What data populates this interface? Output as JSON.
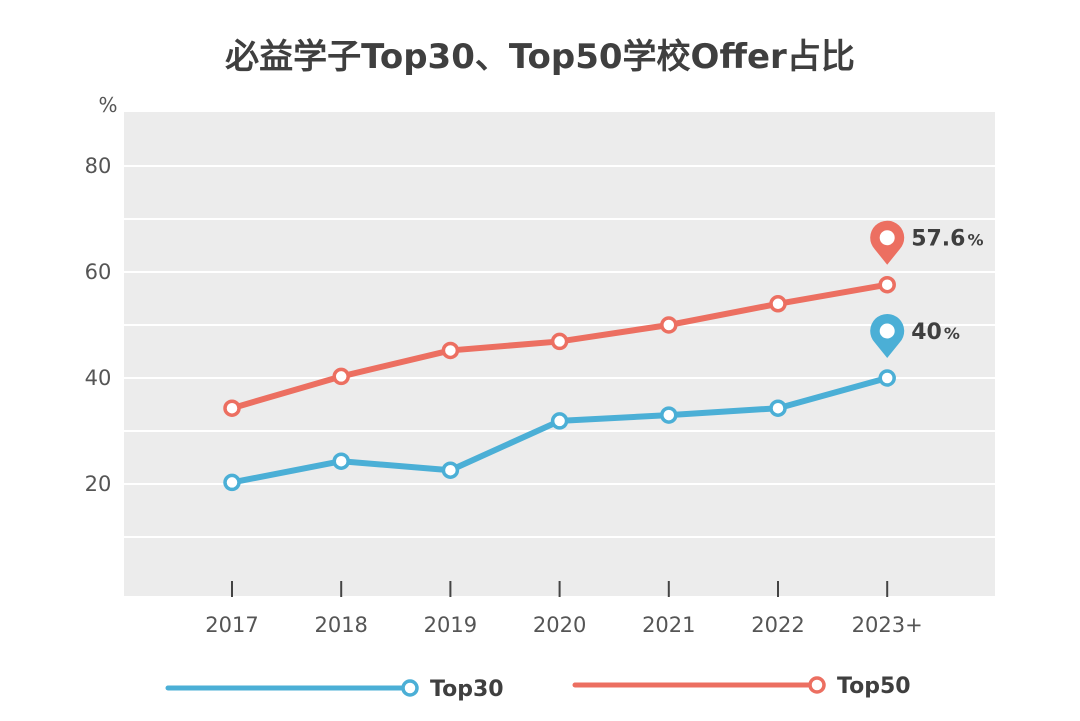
{
  "chart_data": {
    "type": "line",
    "title": "必益学子Top30、Top50学校Offer占比",
    "ylabel": "%",
    "xlabel": "",
    "categories": [
      "2017",
      "2018",
      "2019",
      "2020",
      "2021",
      "2022",
      "2023+"
    ],
    "ylim": [
      0,
      90
    ],
    "yticks": [
      "20",
      "40",
      "60",
      "80"
    ],
    "grid": true,
    "legend_position": "bottom",
    "series": [
      {
        "name": "Top30",
        "color": "#4bafd6",
        "values": [
          20.3,
          24.3,
          22.6,
          31.9,
          33.0,
          34.3,
          40.0
        ],
        "callout": {
          "value": "40",
          "unit": "%"
        }
      },
      {
        "name": "Top50",
        "color": "#ec6f61",
        "values": [
          34.3,
          40.3,
          45.2,
          46.9,
          50.0,
          54.0,
          57.6
        ],
        "callout": {
          "value": "57.6",
          "unit": "%"
        }
      }
    ]
  },
  "colors": {
    "plot_background": "#ececec",
    "gridline": "#ffffff",
    "axis": "#d0d0d0",
    "text": "#3f3f3f"
  }
}
